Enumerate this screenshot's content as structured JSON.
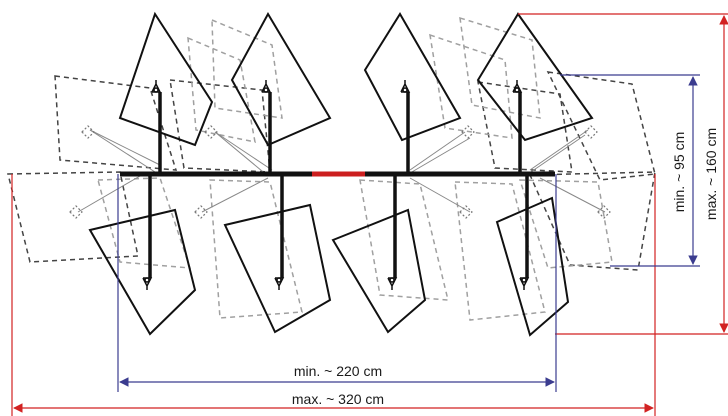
{
  "dimensions": {
    "width_min": "min. ~ 220 cm",
    "width_max": "max. ~ 320 cm",
    "height_min": "min. ~ 95 cm",
    "height_max": "max. ~ 160 cm"
  },
  "colors": {
    "frame": "#111111",
    "solid_blade": "#111111",
    "dashed_dark": "#444444",
    "dashed_light": "#a0a0a0",
    "center_beam": "#cc1f1f",
    "min_dimension": "#3b3c8f",
    "max_dimension": "#d22222"
  },
  "units": {
    "top": [
      {
        "name": "rotor-unit-top-1"
      },
      {
        "name": "rotor-unit-top-2"
      },
      {
        "name": "rotor-unit-top-3"
      },
      {
        "name": "rotor-unit-top-4"
      }
    ],
    "bottom": [
      {
        "name": "rotor-unit-bottom-1"
      },
      {
        "name": "rotor-unit-bottom-2"
      },
      {
        "name": "rotor-unit-bottom-3"
      },
      {
        "name": "rotor-unit-bottom-4"
      }
    ]
  }
}
